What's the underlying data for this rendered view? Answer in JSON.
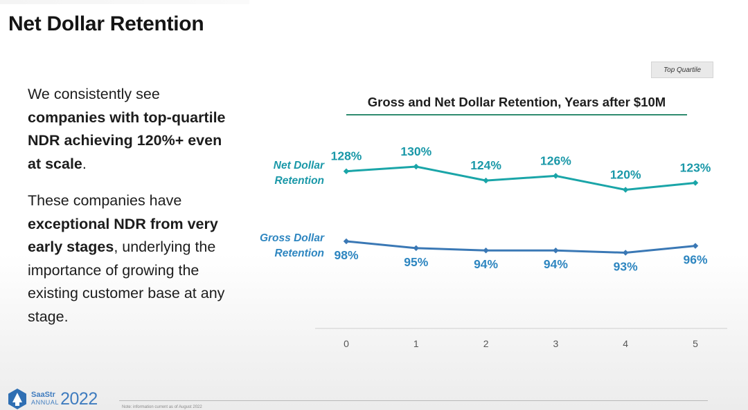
{
  "slide": {
    "title": "Net Dollar Retention",
    "badge": "Top Quartile",
    "paragraph1": [
      {
        "text": "We consistently see ",
        "bold": false
      },
      {
        "text": "companies with top-quartile NDR achieving 120%+ even at scale",
        "bold": true
      },
      {
        "text": ".",
        "bold": false
      }
    ],
    "paragraph2": [
      {
        "text": "These companies have ",
        "bold": false
      },
      {
        "text": "exceptional NDR from very early stages",
        "bold": true
      },
      {
        "text": ", underlying the importance of growing the existing customer base at any stage.",
        "bold": false
      }
    ],
    "footer_note": "Note: information current as of August 2022",
    "logo": {
      "name": "SaaStr",
      "event": "ANNUAL",
      "year": "2022"
    }
  },
  "chart_data": {
    "type": "line",
    "title": "Gross and Net Dollar Retention, Years after $10M",
    "xlabel": "",
    "ylabel": "",
    "x": [
      0,
      1,
      2,
      3,
      4,
      5
    ],
    "x_tick_labels": [
      "0",
      "1",
      "2",
      "3",
      "4",
      "5"
    ],
    "series": [
      {
        "name": "Net Dollar Retention",
        "label_lines": [
          "Net Dollar",
          "Retention"
        ],
        "values": [
          128,
          130,
          124,
          126,
          120,
          123
        ],
        "labels": [
          "128%",
          "130%",
          "124%",
          "126%",
          "120%",
          "123%"
        ],
        "color": "#1aa5a8",
        "label_color": "#1a98a8",
        "label_position": "above"
      },
      {
        "name": "Gross Dollar Retention",
        "label_lines": [
          "Gross Dollar",
          "Retention"
        ],
        "values": [
          98,
          95,
          94,
          94,
          93,
          96
        ],
        "labels": [
          "98%",
          "95%",
          "94%",
          "94%",
          "93%",
          "96%"
        ],
        "color": "#3a78b5",
        "label_color": "#2e86c0",
        "label_position": "below"
      }
    ],
    "grid": false,
    "axis_line": "x-baseline"
  }
}
